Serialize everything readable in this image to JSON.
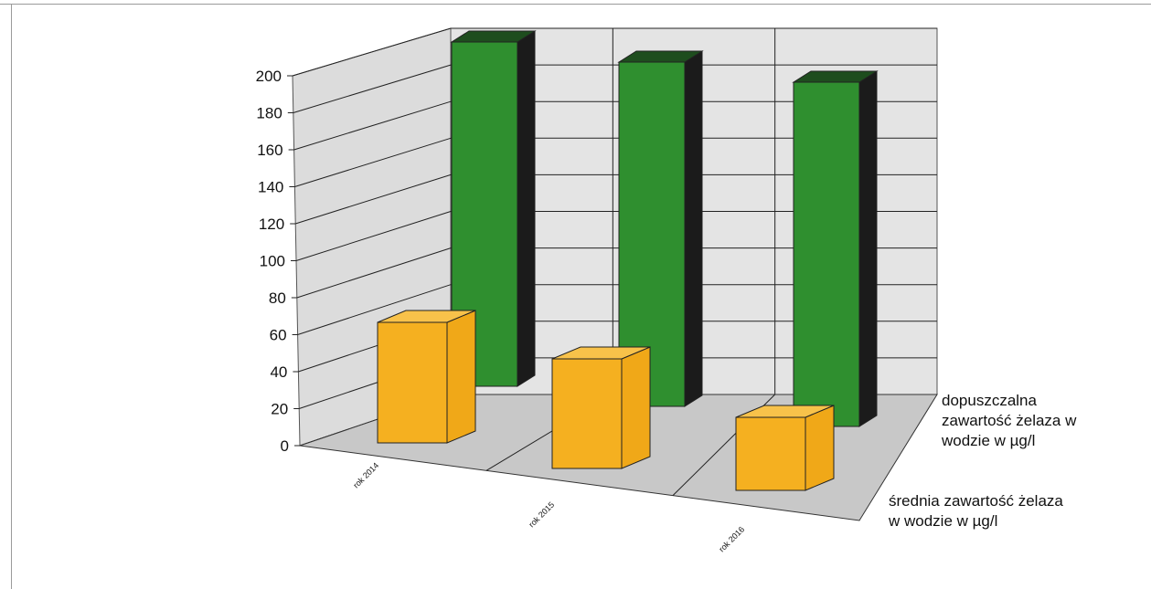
{
  "chart_data": {
    "type": "bar",
    "style": "3d-grouped",
    "categories": [
      "rok 2014",
      "rok 2015",
      "rok 2016"
    ],
    "series": [
      {
        "name": "dopuszczalna zawartość żelaza w wodzie w µg/l",
        "values": [
          200,
          200,
          200
        ],
        "color": "#2e8b2e"
      },
      {
        "name": "średnia zawartość  żelaza w wodzie w µg/l",
        "values": [
          66,
          60,
          40
        ],
        "color": "#f5b020"
      }
    ],
    "ylim": [
      0,
      200
    ],
    "yticks": [
      0,
      20,
      40,
      60,
      80,
      100,
      120,
      140,
      160,
      180,
      200
    ],
    "legend_lines": [
      [
        "dopuszczalna",
        "zawartość  żelaza w",
        "wodzie w µg/l"
      ],
      [
        "średnia zawartość  żelaza",
        "w wodzie w µg/l"
      ]
    ],
    "grid": true,
    "legend_position": "right"
  }
}
